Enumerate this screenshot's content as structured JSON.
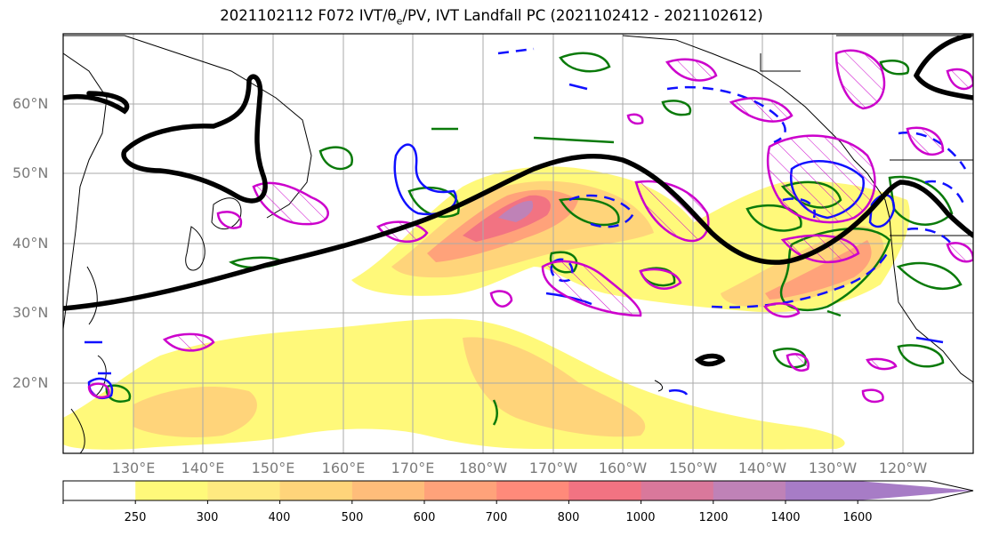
{
  "title_prefix": "2021102112 F072 IVT/",
  "title_theta": "θ",
  "title_theta_sub": "e",
  "title_suffix": "/PV, IVT Landfall PC (2021102412 - 2021102612)",
  "lat_labels": [
    "60°N",
    "50°N",
    "40°N",
    "30°N",
    "20°N"
  ],
  "lon_labels": [
    "130°E",
    "140°E",
    "150°E",
    "160°E",
    "170°E",
    "180°W",
    "170°W",
    "160°W",
    "150°W",
    "140°W",
    "130°W",
    "120°W"
  ],
  "colorbar": {
    "ticks": [
      "250",
      "300",
      "400",
      "500",
      "600",
      "700",
      "800",
      "1000",
      "1200",
      "1400",
      "1600"
    ],
    "colors": [
      "#ffffff",
      "#fff97a",
      "#ffe980",
      "#ffd47a",
      "#ffbd7a",
      "#ffa27a",
      "#ff8a7a",
      "#f27382",
      "#d9789b",
      "#bf82b7",
      "#a77cc6"
    ],
    "extend": "max"
  },
  "legend_colors": {
    "ivt_fill": "#ffe980",
    "pv_contour": "#0a7a0a",
    "theta_e_contour": "#1010ff",
    "landfall_pc": "#cc00cc",
    "jet_line": "#000000"
  }
}
